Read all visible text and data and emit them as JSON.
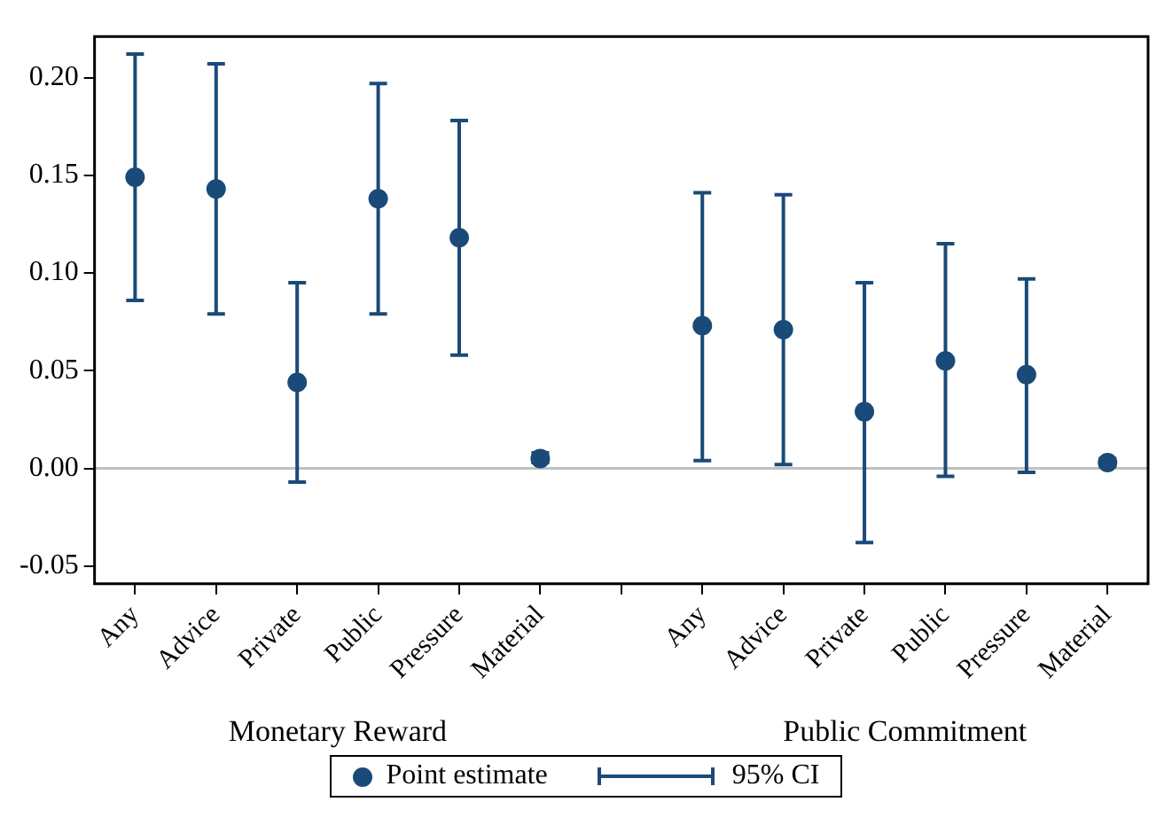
{
  "chart_data": {
    "type": "scatter",
    "categories": [
      "Any",
      "Advice",
      "Private",
      "Public",
      "Pressure",
      "Material",
      null,
      "Any",
      "Advice",
      "Private",
      "Public",
      "Pressure",
      "Material"
    ],
    "series": [
      {
        "name": "Point estimate",
        "color": "#1a4a78",
        "values": [
          0.149,
          0.143,
          0.044,
          0.138,
          0.118,
          0.005,
          null,
          0.073,
          0.071,
          0.029,
          0.055,
          0.048,
          0.003
        ],
        "errors": [
          [
            0.086,
            0.212
          ],
          [
            0.079,
            0.207
          ],
          [
            -0.007,
            0.095
          ],
          [
            0.079,
            0.197
          ],
          [
            0.058,
            0.178
          ],
          [
            0.003,
            0.008
          ],
          null,
          [
            0.004,
            0.141
          ],
          [
            0.002,
            0.14
          ],
          [
            -0.038,
            0.095
          ],
          [
            -0.004,
            0.115
          ],
          [
            -0.002,
            0.097
          ],
          [
            0.001,
            0.005
          ]
        ]
      }
    ],
    "ylim": [
      -0.059,
      0.221
    ],
    "yticks": [
      {
        "value": -0.05,
        "label": "-0.05"
      },
      {
        "value": 0,
        "label": "0.00"
      },
      {
        "value": 0.05,
        "label": "0.05"
      },
      {
        "value": 0.1,
        "label": "0.10"
      },
      {
        "value": 0.15,
        "label": "0.15"
      },
      {
        "value": 0.2,
        "label": "0.20"
      }
    ],
    "ref_lines": [
      {
        "axis": "y",
        "value": 0,
        "color": "#c0c0c0"
      }
    ],
    "annotations": [
      "Monetary Reward",
      "Public Commitment",
      "95% CI"
    ],
    "grid": false,
    "legend": "bottom",
    "marker": "circle"
  }
}
